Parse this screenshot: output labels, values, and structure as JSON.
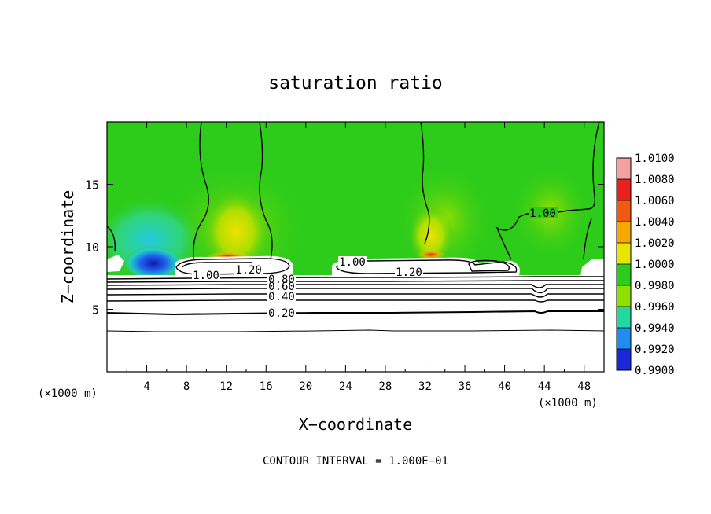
{
  "chart_data": {
    "type": "heatmap",
    "title": "saturation ratio",
    "xlabel": "X−coordinate",
    "ylabel": "Z−coordinate",
    "x_unit_left": "(×1000 m)",
    "x_unit_right": "(×1000 m)",
    "xlim": [
      0,
      50
    ],
    "ylim": [
      0,
      20
    ],
    "x_ticks": [
      4,
      8,
      12,
      16,
      20,
      24,
      28,
      32,
      36,
      40,
      44,
      48
    ],
    "x_tick_labels": [
      "4",
      "8",
      "12",
      "16",
      "20",
      "24",
      "28",
      "32",
      "36",
      "40",
      "44",
      "48"
    ],
    "y_ticks": [
      5,
      10,
      15
    ],
    "y_tick_labels": [
      "5",
      "10",
      "15"
    ],
    "footer": "CONTOUR INTERVAL = 1.000E−01",
    "colorbar": {
      "min": 0.99,
      "max": 1.01,
      "labels": [
        "1.0100",
        "1.0080",
        "1.0060",
        "1.0040",
        "1.0020",
        "1.0000",
        "0.9980",
        "0.9960",
        "0.9940",
        "0.9920",
        "0.9900"
      ],
      "colors": [
        "#f5a0a0",
        "#e82020",
        "#f05a10",
        "#f7a800",
        "#e6e600",
        "#2ecc1a",
        "#8ee000",
        "#20d8a0",
        "#1e8cf0",
        "#1a28d8",
        "#6a1ea8"
      ]
    },
    "contour_labels": [
      {
        "x": 10.0,
        "y": 7.5,
        "text": "1.00"
      },
      {
        "x": 14.0,
        "y": 8.2,
        "text": "1.20"
      },
      {
        "x": 17.8,
        "y": 7.3,
        "text": "0.80"
      },
      {
        "x": 17.8,
        "y": 6.8,
        "text": "0.60"
      },
      {
        "x": 17.8,
        "y": 6.0,
        "text": "0.40"
      },
      {
        "x": 17.8,
        "y": 4.9,
        "text": "0.20"
      },
      {
        "x": 24.6,
        "y": 8.8,
        "text": "1.00"
      },
      {
        "x": 30.7,
        "y": 8.1,
        "text": "1.20"
      },
      {
        "x": 43.3,
        "y": 12.8,
        "text": "1.00"
      }
    ]
  }
}
